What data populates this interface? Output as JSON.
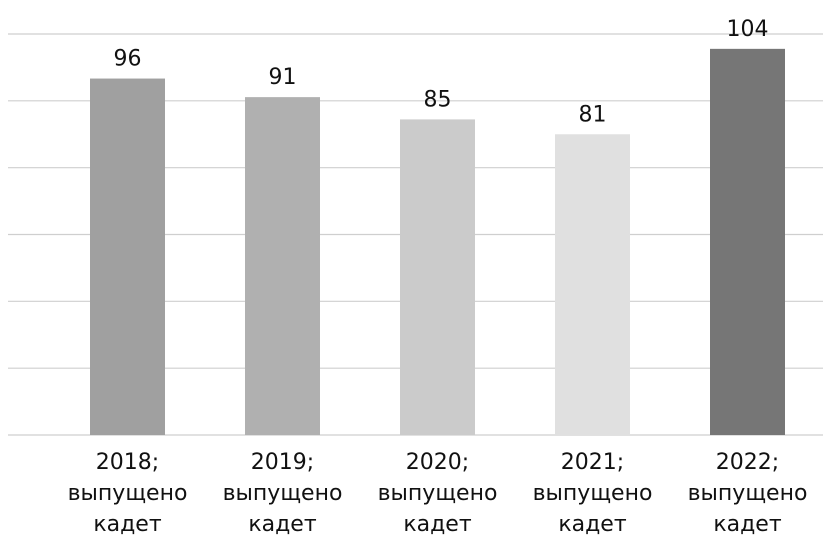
{
  "chart_data": {
    "type": "bar",
    "categories": [
      "2018;\nвыпущено\nкадет",
      "2019;\nвыпущено\nкадет",
      "2020;\nвыпущено\nкадет",
      "2021;\nвыпущено\nкадет",
      "2022;\nвыпущено\nкадет"
    ],
    "values": [
      96,
      91,
      85,
      81,
      104
    ],
    "colors": [
      "#a0a0a0",
      "#b0b0b0",
      "#cbcbcb",
      "#e0e0e0",
      "#767676"
    ],
    "ylim": [
      0,
      108
    ],
    "yticks": [
      0,
      18,
      36,
      54,
      72,
      90,
      108
    ],
    "grid": true
  }
}
